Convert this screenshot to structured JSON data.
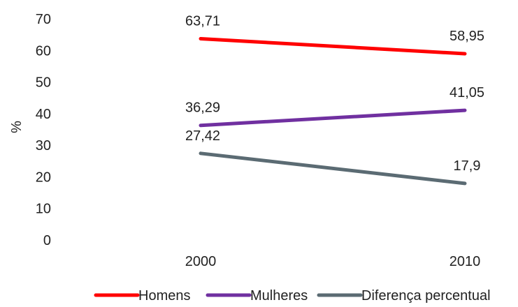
{
  "chart_data": {
    "type": "line",
    "title": "",
    "xlabel": "",
    "ylabel": "%",
    "ylim": [
      0,
      70
    ],
    "yticks": [
      "0",
      "10",
      "20",
      "30",
      "40",
      "50",
      "60",
      "70"
    ],
    "categories": [
      "2000",
      "2010"
    ],
    "grid": false,
    "legend_position": "bottom",
    "series": [
      {
        "name": "Homens",
        "color": "#ff0000",
        "values": [
          63.71,
          58.95
        ],
        "labels": [
          "63,71",
          "58,95"
        ]
      },
      {
        "name": "Mulheres",
        "color": "#7030a0",
        "values": [
          36.29,
          41.05
        ],
        "labels": [
          "36,29",
          "41,05"
        ]
      },
      {
        "name": "Diferença percentual",
        "color": "#5b6b73",
        "values": [
          27.42,
          17.9
        ],
        "labels": [
          "27,42",
          "17,9"
        ]
      }
    ]
  }
}
